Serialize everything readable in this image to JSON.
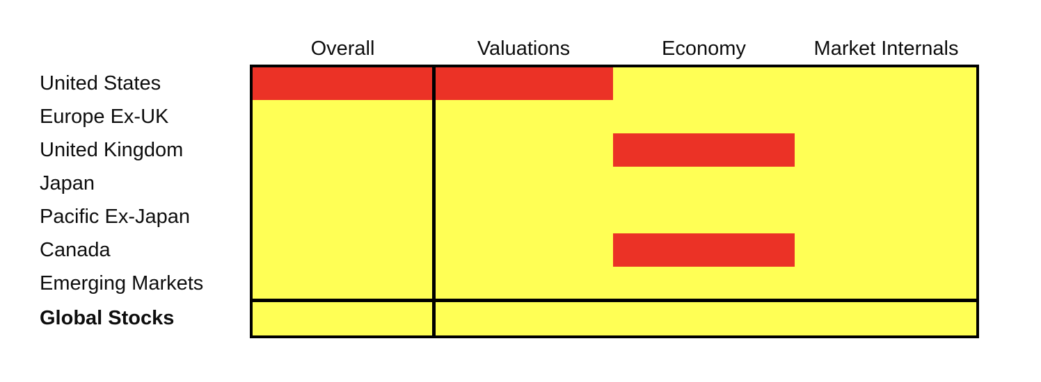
{
  "page": {
    "background": "#ffffff"
  },
  "palette": {
    "red": "#EB3226",
    "yellow": "#FFFF55",
    "border": "#000000",
    "text": "#0d0d0d"
  },
  "chart_data": {
    "type": "heatmap",
    "title": "",
    "columns": [
      "Overall",
      "Valuations",
      "Economy",
      "Market Internals"
    ],
    "rows": [
      "United States",
      "Europe Ex-UK",
      "United Kingdom",
      "Japan",
      "Pacific Ex-Japan",
      "Canada",
      "Emerging Markets",
      "Global Stocks"
    ],
    "emphasized_row": "Global Stocks",
    "values": [
      [
        "red",
        "red",
        "yellow",
        "yellow"
      ],
      [
        "yellow",
        "yellow",
        "yellow",
        "yellow"
      ],
      [
        "yellow",
        "yellow",
        "red",
        "yellow"
      ],
      [
        "yellow",
        "yellow",
        "yellow",
        "yellow"
      ],
      [
        "yellow",
        "yellow",
        "yellow",
        "yellow"
      ],
      [
        "yellow",
        "yellow",
        "red",
        "yellow"
      ],
      [
        "yellow",
        "yellow",
        "yellow",
        "yellow"
      ],
      [
        "yellow",
        "yellow",
        "yellow",
        "yellow"
      ]
    ],
    "legend_position": "none",
    "grid": "outer-border-with-overall-divider-and-summary-separator"
  }
}
